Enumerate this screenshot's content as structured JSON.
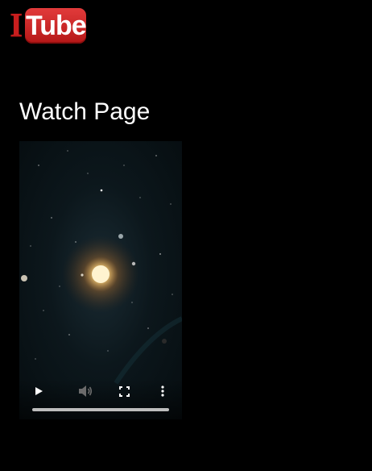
{
  "logo": {
    "prefix": "I",
    "text": "Tube",
    "colors": {
      "red": "#c81e1e",
      "text": "#ffffff"
    }
  },
  "main": {
    "heading": "Watch Page"
  },
  "video": {
    "content": "solar system with central star and planets",
    "controls": {
      "play_icon": "play-icon",
      "volume_icon": "volume-icon",
      "volume_muted": true,
      "fullscreen_icon": "fullscreen-icon",
      "more_icon": "more-options-icon"
    },
    "progress": 0
  },
  "colors": {
    "background": "#000000",
    "heading": "#ffffff",
    "progress_track": "#bdbdbd"
  }
}
